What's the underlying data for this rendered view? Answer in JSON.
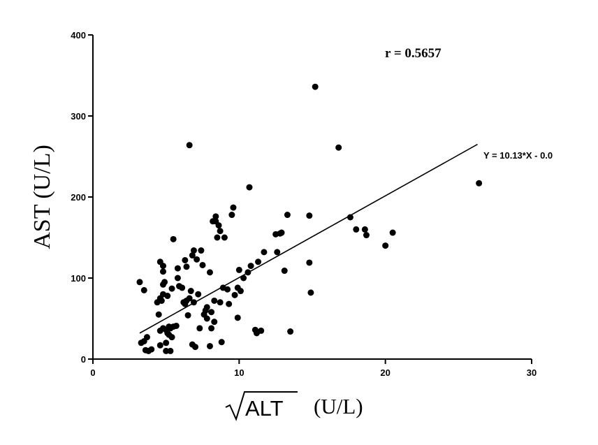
{
  "chart_data": {
    "type": "scatter",
    "xlabel": "ALT",
    "xlabel_unit": "(U/L)",
    "xlabel_sqrt": true,
    "ylabel": "AST (U/L)",
    "xlim": [
      0,
      30
    ],
    "ylim": [
      0,
      400
    ],
    "xticks": [
      0,
      10,
      20,
      30
    ],
    "yticks": [
      0,
      100,
      200,
      300,
      400
    ],
    "xtick_labels": [
      "0",
      "10",
      "20",
      "30"
    ],
    "ytick_labels": [
      "0",
      "100",
      "200",
      "300",
      "400"
    ],
    "grid": false,
    "annotations": {
      "correlation": "r = 0.5657",
      "equation": "Y = 10.13*X - 0.0"
    },
    "regression": {
      "x": [
        3.2,
        26.3
      ],
      "y": [
        32,
        265
      ]
    },
    "points": [
      [
        3.2,
        95
      ],
      [
        3.5,
        85
      ],
      [
        3.3,
        20
      ],
      [
        3.5,
        22
      ],
      [
        3.7,
        27
      ],
      [
        3.6,
        11
      ],
      [
        4.0,
        12
      ],
      [
        3.8,
        10
      ],
      [
        4.4,
        70
      ],
      [
        4.6,
        75
      ],
      [
        4.8,
        80
      ],
      [
        4.7,
        72
      ],
      [
        4.6,
        120
      ],
      [
        4.8,
        115
      ],
      [
        4.8,
        108
      ],
      [
        4.9,
        95
      ],
      [
        4.8,
        92
      ],
      [
        4.5,
        55
      ],
      [
        4.6,
        35
      ],
      [
        4.8,
        38
      ],
      [
        5.0,
        36
      ],
      [
        5.1,
        32
      ],
      [
        5.2,
        30
      ],
      [
        5.3,
        38
      ],
      [
        5.4,
        27
      ],
      [
        5.0,
        20
      ],
      [
        4.6,
        17
      ],
      [
        5.0,
        10
      ],
      [
        5.3,
        10
      ],
      [
        5.2,
        40
      ],
      [
        5.5,
        40
      ],
      [
        5.7,
        41
      ],
      [
        5.1,
        78
      ],
      [
        5.4,
        87
      ],
      [
        5.5,
        148
      ],
      [
        5.8,
        100
      ],
      [
        5.8,
        112
      ],
      [
        5.9,
        90
      ],
      [
        6.1,
        88
      ],
      [
        6.2,
        70
      ],
      [
        6.3,
        68
      ],
      [
        6.3,
        122
      ],
      [
        6.4,
        114
      ],
      [
        6.4,
        72
      ],
      [
        6.5,
        54
      ],
      [
        6.6,
        75
      ],
      [
        6.6,
        264
      ],
      [
        6.7,
        84
      ],
      [
        6.8,
        128
      ],
      [
        6.9,
        134
      ],
      [
        6.8,
        18
      ],
      [
        7.0,
        15
      ],
      [
        6.9,
        70
      ],
      [
        7.1,
        123
      ],
      [
        7.2,
        80
      ],
      [
        7.3,
        38
      ],
      [
        7.4,
        134
      ],
      [
        7.5,
        116
      ],
      [
        7.6,
        55
      ],
      [
        7.7,
        60
      ],
      [
        7.8,
        64
      ],
      [
        7.8,
        50
      ],
      [
        8.0,
        16
      ],
      [
        8.0,
        107
      ],
      [
        8.1,
        38
      ],
      [
        8.1,
        58
      ],
      [
        8.2,
        170
      ],
      [
        8.3,
        72
      ],
      [
        8.3,
        46
      ],
      [
        8.4,
        170
      ],
      [
        8.4,
        176
      ],
      [
        8.5,
        150
      ],
      [
        8.6,
        165
      ],
      [
        8.7,
        158
      ],
      [
        8.7,
        70
      ],
      [
        8.8,
        21
      ],
      [
        8.9,
        88
      ],
      [
        9.0,
        150
      ],
      [
        9.2,
        86
      ],
      [
        9.3,
        68
      ],
      [
        9.5,
        178
      ],
      [
        9.6,
        187
      ],
      [
        9.7,
        79
      ],
      [
        9.9,
        88
      ],
      [
        9.9,
        51
      ],
      [
        10.0,
        110
      ],
      [
        10.1,
        84
      ],
      [
        10.3,
        100
      ],
      [
        10.6,
        107
      ],
      [
        10.7,
        212
      ],
      [
        10.8,
        115
      ],
      [
        11.1,
        36
      ],
      [
        11.2,
        32
      ],
      [
        11.3,
        120
      ],
      [
        11.5,
        35
      ],
      [
        11.7,
        132
      ],
      [
        12.5,
        154
      ],
      [
        12.6,
        132
      ],
      [
        12.8,
        155
      ],
      [
        12.9,
        156
      ],
      [
        13.1,
        109
      ],
      [
        13.3,
        178
      ],
      [
        13.5,
        34
      ],
      [
        14.8,
        177
      ],
      [
        14.8,
        119
      ],
      [
        14.9,
        82
      ],
      [
        15.2,
        336
      ],
      [
        16.8,
        261
      ],
      [
        17.6,
        175
      ],
      [
        18.0,
        160
      ],
      [
        18.6,
        160
      ],
      [
        18.7,
        153
      ],
      [
        20.0,
        140
      ],
      [
        20.5,
        156
      ],
      [
        26.4,
        217
      ]
    ]
  }
}
